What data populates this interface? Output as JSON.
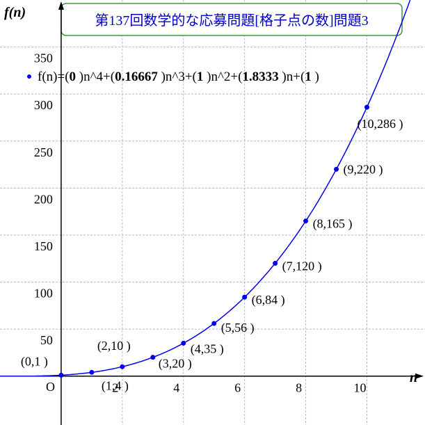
{
  "chart_data": {
    "type": "scatter",
    "title": "第137回数学的な応募問題[格子点の数]問題3",
    "x_label": "n",
    "y_label": "f(n)",
    "origin_label": "O",
    "x": [
      0,
      1,
      2,
      3,
      4,
      5,
      6,
      7,
      8,
      9,
      10
    ],
    "series": [
      {
        "name": "f(n)",
        "color": "#0000ee",
        "values": [
          1,
          4,
          10,
          20,
          35,
          56,
          84,
          120,
          165,
          220,
          286
        ],
        "value_labels": [
          "(0,1 )",
          "(1,4 )",
          "(2,10 )",
          "(3,20 )",
          "(4,35 )",
          "(5,56 )",
          "(6,84 )",
          "(7,120 )",
          "(8,165 )",
          "(9,220 )",
          "(10,286 )"
        ]
      }
    ],
    "equation": {
      "parts": [
        "f(n)=(",
        " )n^4+(",
        " )n^3+(",
        " )n^2+(",
        " )n+(",
        " )"
      ],
      "coefficients": [
        0,
        0.16667,
        1,
        1.8333,
        1
      ]
    },
    "xlim": [
      -2,
      11.9
    ],
    "ylim": [
      -52,
      400
    ],
    "xticks": [
      2,
      4,
      6,
      8,
      10
    ],
    "yticks": [
      50,
      100,
      150,
      200,
      250,
      300,
      350
    ],
    "grid": true
  }
}
